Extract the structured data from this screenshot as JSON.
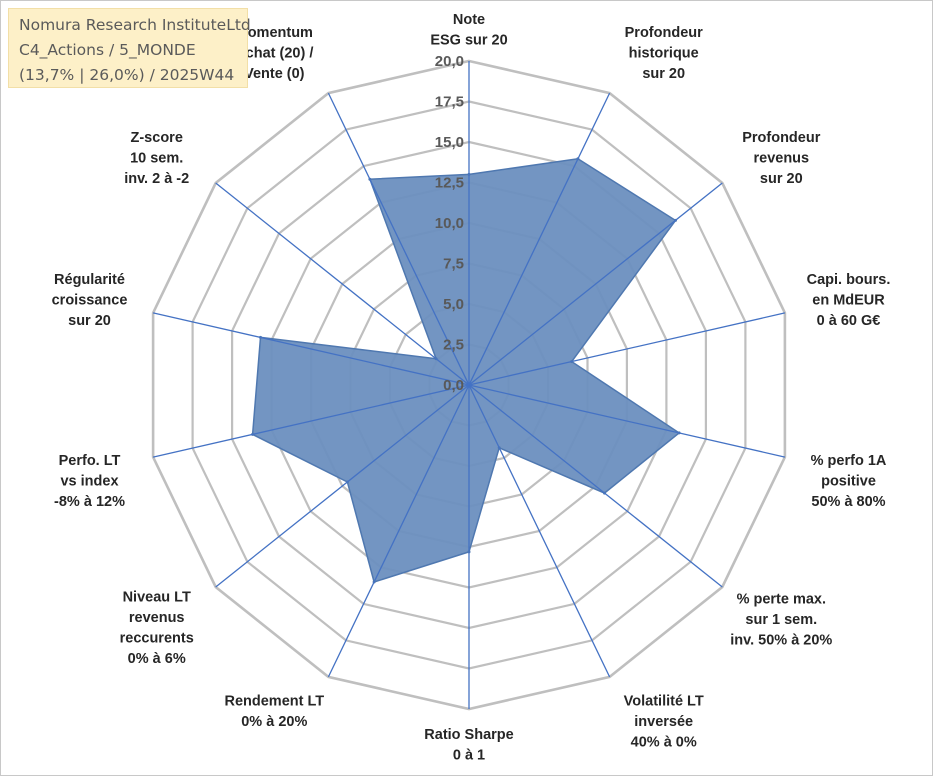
{
  "info": {
    "line1": "Nomura Research InstituteLtd",
    "line2": "C4_Actions / 5_MONDE",
    "line3": "(13,7% | 26,0%) / 2025W44"
  },
  "chart_data": {
    "type": "radar",
    "rmax": 20,
    "ticks": [
      "0,0",
      "2,5",
      "5,0",
      "7,5",
      "10,0",
      "12,5",
      "15,0",
      "17,5",
      "20,0"
    ],
    "tick_values": [
      0,
      2.5,
      5,
      7.5,
      10,
      12.5,
      15,
      17.5,
      20
    ],
    "axes": [
      [
        "Note",
        "ESG sur 20"
      ],
      [
        "Profondeur",
        "historique",
        "sur 20"
      ],
      [
        "Profondeur",
        "revenus",
        "sur 20"
      ],
      [
        "Capi. bours.",
        "en MdEUR",
        "0 à 60 G€"
      ],
      [
        "% perfo 1A",
        "positive",
        "50% à 80%"
      ],
      [
        "% perte max.",
        "sur 1 sem.",
        "inv. 50% à 20%"
      ],
      [
        "Volatilité LT",
        "inversée",
        "40% à 0%"
      ],
      [
        "Ratio Sharpe",
        "0 à 1"
      ],
      [
        "Rendement LT",
        "0% à 20%"
      ],
      [
        "Niveau LT",
        "revenus",
        "reccurents",
        "0% à 6%"
      ],
      [
        "Perfo. LT",
        "vs index",
        "-8% à 12%"
      ],
      [
        "Régularité",
        "croissance",
        "sur 20"
      ],
      [
        "Z-score",
        "10 sem.",
        "inv. 2 à -2"
      ],
      [
        "Momentum",
        "Achat (20) /",
        "Vente (0)"
      ]
    ],
    "values": [
      13,
      15.5,
      16.3,
      6.5,
      13.3,
      10.7,
      4.3,
      10.3,
      13.5,
      9.6,
      13.7,
      13.2,
      2.6,
      14.1
    ],
    "series_color": "#6b8fbf",
    "series_edge": "#4f78b0",
    "axis_color": "#4472c4",
    "grid_color": "#bfbfbf",
    "grid": true
  }
}
